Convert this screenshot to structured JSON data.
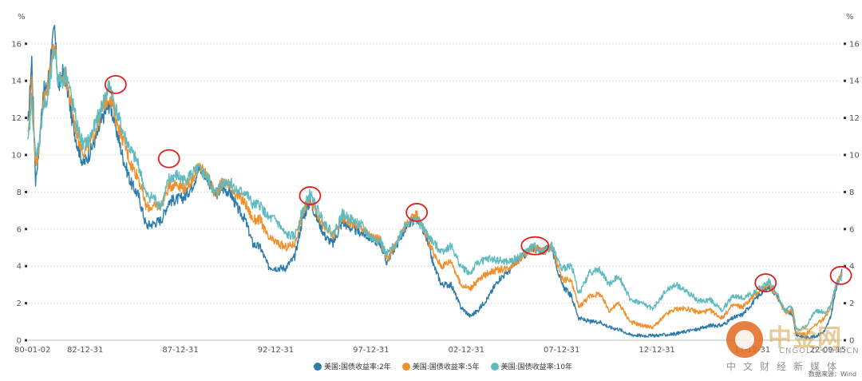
{
  "chart_data": {
    "type": "line",
    "unit_left": "%",
    "unit_right": "%",
    "y_ticks": [
      "0",
      "2",
      "4",
      "6",
      "8",
      "10",
      "12",
      "14",
      "16"
    ],
    "ylim": [
      0,
      17.5
    ],
    "x_tick_labels": [
      "80-01-02",
      "82-12-31",
      "87-12-31",
      "92-12-31",
      "97-12-31",
      "02-12-31",
      "07-12-31",
      "12-12-31",
      "17-12-31",
      "22-09-15"
    ],
    "x_tick_years": [
      1980.0,
      1983.0,
      1988.0,
      1993.0,
      1998.0,
      2003.0,
      2008.0,
      2013.0,
      2018.0,
      2022.71
    ],
    "xlim": [
      1980.0,
      2022.71
    ],
    "grid": true,
    "legend_position": "bottom-center",
    "series": [
      {
        "name": "美国:国债收益率:2年",
        "color": "#2b7bab",
        "x": [
          1980.0,
          1980.2,
          1980.4,
          1980.6,
          1980.8,
          1981.0,
          1981.2,
          1981.4,
          1981.6,
          1981.8,
          1982.0,
          1982.3,
          1982.6,
          1982.9,
          1983.2,
          1983.6,
          1984.0,
          1984.3,
          1984.6,
          1985.0,
          1985.4,
          1985.8,
          1986.2,
          1986.6,
          1987.0,
          1987.4,
          1987.8,
          1988.2,
          1988.6,
          1989.0,
          1989.4,
          1989.8,
          1990.2,
          1990.6,
          1991.0,
          1991.4,
          1991.8,
          1992.2,
          1992.6,
          1993.0,
          1993.5,
          1994.0,
          1994.4,
          1994.8,
          1995.2,
          1995.6,
          1996.0,
          1996.5,
          1997.0,
          1997.5,
          1998.0,
          1998.5,
          1998.8,
          1999.3,
          1999.8,
          2000.4,
          2000.9,
          2001.3,
          2001.7,
          2002.2,
          2002.7,
          2003.2,
          2003.6,
          2004.2,
          2004.7,
          2005.2,
          2005.8,
          2006.5,
          2007.0,
          2007.5,
          2008.0,
          2008.5,
          2008.9,
          2009.5,
          2010.0,
          2010.5,
          2011.0,
          2011.6,
          2012.2,
          2012.8,
          2013.5,
          2014.0,
          2014.6,
          2015.2,
          2015.8,
          2016.4,
          2017.0,
          2017.5,
          2018.0,
          2018.5,
          2018.9,
          2019.3,
          2019.7,
          2020.1,
          2020.3,
          2020.8,
          2021.3,
          2021.8,
          2022.1,
          2022.4,
          2022.71
        ],
        "y": [
          11.5,
          15.2,
          8.6,
          10.5,
          13.5,
          13.5,
          15.5,
          16.8,
          13.5,
          14.5,
          14.0,
          12.0,
          10.5,
          9.5,
          10.0,
          11.0,
          12.2,
          12.8,
          11.5,
          9.8,
          8.5,
          7.8,
          6.2,
          6.3,
          6.5,
          7.5,
          7.6,
          7.7,
          8.3,
          9.3,
          8.8,
          7.8,
          8.2,
          8.0,
          7.1,
          6.5,
          5.2,
          5.0,
          4.0,
          3.9,
          3.9,
          4.5,
          6.5,
          7.5,
          6.5,
          5.6,
          5.2,
          6.4,
          6.0,
          5.8,
          5.5,
          5.2,
          4.2,
          5.1,
          6.0,
          6.7,
          5.5,
          4.0,
          3.0,
          3.0,
          1.8,
          1.3,
          1.6,
          2.4,
          3.3,
          3.7,
          4.4,
          5.0,
          4.8,
          5.0,
          3.0,
          2.4,
          1.2,
          1.0,
          1.0,
          0.7,
          0.6,
          0.3,
          0.25,
          0.25,
          0.3,
          0.35,
          0.5,
          0.6,
          0.8,
          0.8,
          1.2,
          1.4,
          2.0,
          2.6,
          2.9,
          2.4,
          1.6,
          1.4,
          0.3,
          0.15,
          0.2,
          0.5,
          1.2,
          2.8,
          3.85
        ]
      },
      {
        "name": "美国:国债收益率:5年",
        "color": "#f0902c",
        "x": [
          1980.0,
          1980.2,
          1980.4,
          1980.6,
          1980.8,
          1981.0,
          1981.2,
          1981.4,
          1981.6,
          1981.8,
          1982.0,
          1982.3,
          1982.6,
          1982.9,
          1983.2,
          1983.6,
          1984.0,
          1984.3,
          1984.6,
          1985.0,
          1985.4,
          1985.8,
          1986.2,
          1986.6,
          1987.0,
          1987.4,
          1987.8,
          1988.2,
          1988.6,
          1989.0,
          1989.4,
          1989.8,
          1990.2,
          1990.6,
          1991.0,
          1991.4,
          1991.8,
          1992.2,
          1992.6,
          1993.0,
          1993.5,
          1994.0,
          1994.4,
          1994.8,
          1995.2,
          1995.6,
          1996.0,
          1996.5,
          1997.0,
          1997.5,
          1998.0,
          1998.5,
          1998.8,
          1999.3,
          1999.8,
          2000.4,
          2000.9,
          2001.3,
          2001.7,
          2002.2,
          2002.7,
          2003.2,
          2003.6,
          2004.2,
          2004.7,
          2005.2,
          2005.8,
          2006.5,
          2007.0,
          2007.5,
          2008.0,
          2008.5,
          2008.9,
          2009.5,
          2010.0,
          2010.5,
          2011.0,
          2011.6,
          2012.2,
          2012.8,
          2013.5,
          2014.0,
          2014.6,
          2015.2,
          2015.8,
          2016.4,
          2017.0,
          2017.5,
          2018.0,
          2018.5,
          2018.9,
          2019.3,
          2019.7,
          2020.1,
          2020.3,
          2020.8,
          2021.3,
          2021.8,
          2022.1,
          2022.4,
          2022.71
        ],
        "y": [
          11.0,
          14.0,
          9.5,
          10.5,
          13.0,
          13.3,
          15.0,
          16.2,
          13.8,
          14.2,
          14.2,
          12.5,
          11.0,
          10.2,
          10.5,
          11.5,
          12.8,
          13.2,
          12.0,
          10.8,
          9.5,
          8.8,
          7.2,
          7.2,
          7.3,
          8.3,
          8.5,
          8.2,
          8.7,
          9.4,
          8.9,
          7.9,
          8.5,
          8.4,
          7.8,
          7.4,
          6.5,
          6.5,
          5.5,
          5.3,
          5.0,
          5.2,
          6.8,
          7.7,
          6.8,
          6.0,
          5.6,
          6.6,
          6.3,
          6.1,
          5.6,
          5.4,
          4.3,
          5.2,
          6.2,
          6.8,
          5.7,
          4.6,
          4.0,
          4.3,
          3.0,
          2.8,
          3.2,
          3.7,
          3.8,
          3.9,
          4.4,
          5.0,
          4.8,
          5.0,
          3.3,
          3.2,
          1.8,
          2.4,
          2.5,
          1.6,
          2.0,
          1.0,
          0.8,
          0.7,
          1.4,
          1.7,
          1.7,
          1.5,
          1.6,
          1.2,
          1.9,
          1.8,
          2.3,
          2.8,
          3.0,
          2.4,
          1.5,
          1.6,
          0.4,
          0.3,
          0.8,
          1.2,
          1.8,
          3.1,
          3.7
        ]
      },
      {
        "name": "美国:国债收益率:10年",
        "color": "#5fbbbf",
        "x": [
          1980.0,
          1980.2,
          1980.4,
          1980.6,
          1980.8,
          1981.0,
          1981.2,
          1981.4,
          1981.6,
          1981.8,
          1982.0,
          1982.3,
          1982.6,
          1982.9,
          1983.2,
          1983.6,
          1984.0,
          1984.3,
          1984.6,
          1985.0,
          1985.4,
          1985.8,
          1986.2,
          1986.6,
          1987.0,
          1987.4,
          1987.8,
          1988.2,
          1988.6,
          1989.0,
          1989.4,
          1989.8,
          1990.2,
          1990.6,
          1991.0,
          1991.4,
          1991.8,
          1992.2,
          1992.6,
          1993.0,
          1993.5,
          1994.0,
          1994.4,
          1994.8,
          1995.2,
          1995.6,
          1996.0,
          1996.5,
          1997.0,
          1997.5,
          1998.0,
          1998.5,
          1998.8,
          1999.3,
          1999.8,
          2000.4,
          2000.9,
          2001.3,
          2001.7,
          2002.2,
          2002.7,
          2003.2,
          2003.6,
          2004.2,
          2004.7,
          2005.2,
          2005.8,
          2006.5,
          2007.0,
          2007.5,
          2008.0,
          2008.5,
          2008.9,
          2009.5,
          2010.0,
          2010.5,
          2011.0,
          2011.6,
          2012.2,
          2012.8,
          2013.5,
          2014.0,
          2014.6,
          2015.2,
          2015.8,
          2016.4,
          2017.0,
          2017.5,
          2018.0,
          2018.5,
          2018.9,
          2019.3,
          2019.7,
          2020.1,
          2020.3,
          2020.8,
          2021.3,
          2021.8,
          2022.1,
          2022.4,
          2022.71
        ],
        "y": [
          10.5,
          13.0,
          9.8,
          10.8,
          12.6,
          12.8,
          14.2,
          15.8,
          14.0,
          14.0,
          14.5,
          13.0,
          11.5,
          10.5,
          10.8,
          11.8,
          13.0,
          13.8,
          12.5,
          11.2,
          10.2,
          9.5,
          7.8,
          7.7,
          7.2,
          8.7,
          8.9,
          8.6,
          9.0,
          9.2,
          8.8,
          7.9,
          8.5,
          8.6,
          8.0,
          8.0,
          7.3,
          7.3,
          6.6,
          6.5,
          5.7,
          5.6,
          7.0,
          7.9,
          7.0,
          6.3,
          5.7,
          6.8,
          6.5,
          6.2,
          5.5,
          5.4,
          4.6,
          5.2,
          6.3,
          6.5,
          5.8,
          5.2,
          4.8,
          5.1,
          4.0,
          3.6,
          4.2,
          4.4,
          4.3,
          4.2,
          4.5,
          5.1,
          4.8,
          5.1,
          3.8,
          4.1,
          2.5,
          3.7,
          3.8,
          3.0,
          3.5,
          2.2,
          2.0,
          1.7,
          2.7,
          3.0,
          2.6,
          2.1,
          2.2,
          1.6,
          2.4,
          2.3,
          2.5,
          2.9,
          3.2,
          2.5,
          1.6,
          1.8,
          0.6,
          0.7,
          1.6,
          1.5,
          1.8,
          3.0,
          3.45
        ]
      }
    ],
    "highlight_circles": [
      {
        "x": 1984.6,
        "y": 13.8
      },
      {
        "x": 1987.4,
        "y": 9.8
      },
      {
        "x": 1994.8,
        "y": 7.8
      },
      {
        "x": 2000.4,
        "y": 6.9
      },
      {
        "x": 2006.6,
        "y": 5.1
      },
      {
        "x": 2018.7,
        "y": 3.1
      },
      {
        "x": 2022.65,
        "y": 3.5
      }
    ],
    "highlight_color": "#e02020"
  },
  "watermark": {
    "brand": "中金网",
    "url": "CNGOLD.COM.CN",
    "tagline": "中文财经新媒体"
  },
  "source": "数据来源：Wind"
}
